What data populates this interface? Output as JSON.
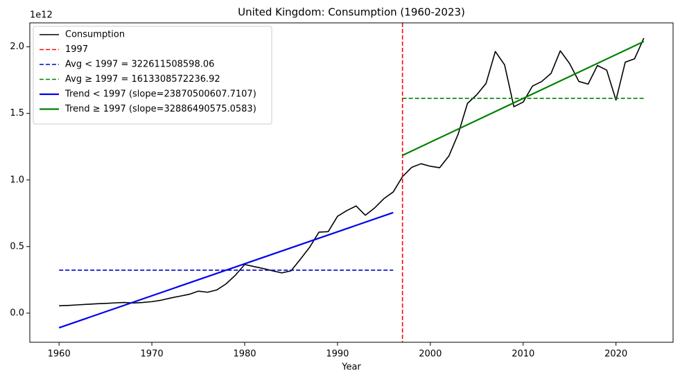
{
  "chart_data": {
    "type": "line",
    "title": "United Kingdom: Consumption (1960-2023)",
    "xlabel": "Year",
    "y_offset_label": "1e12",
    "xlim": [
      1956.85,
      2026.15
    ],
    "ylim": [
      -219000000000.0,
      2180000000000.0
    ],
    "xticks": [
      1960,
      1970,
      1980,
      1990,
      2000,
      2010,
      2020
    ],
    "yticks": [
      {
        "value": 0,
        "label": "0.0"
      },
      {
        "value": 500000000000.0,
        "label": "0.5"
      },
      {
        "value": 1000000000000.0,
        "label": "1.0"
      },
      {
        "value": 1500000000000.0,
        "label": "1.5"
      },
      {
        "value": 2000000000000.0,
        "label": "2.0"
      }
    ],
    "grid": false,
    "legend": "upper left",
    "series": [
      {
        "name": "Consumption",
        "color": "#000000",
        "dash": false,
        "width": 1.6,
        "x": [
          1960,
          1961,
          1962,
          1963,
          1964,
          1965,
          1966,
          1967,
          1968,
          1969,
          1970,
          1971,
          1972,
          1973,
          1974,
          1975,
          1976,
          1977,
          1978,
          1979,
          1980,
          1981,
          1982,
          1983,
          1984,
          1985,
          1986,
          1987,
          1988,
          1989,
          1990,
          1991,
          1992,
          1993,
          1994,
          1995,
          1996,
          1997,
          1998,
          1999,
          2000,
          2001,
          2002,
          2003,
          2004,
          2005,
          2006,
          2007,
          2008,
          2009,
          2010,
          2011,
          2012,
          2013,
          2014,
          2015,
          2016,
          2017,
          2018,
          2019,
          2020,
          2021,
          2022,
          2023
        ],
        "values": [
          55000000000.0,
          58000000000.0,
          62000000000.0,
          66000000000.0,
          70000000000.0,
          73000000000.0,
          77000000000.0,
          80000000000.0,
          76000000000.0,
          80000000000.0,
          86000000000.0,
          97000000000.0,
          113000000000.0,
          127000000000.0,
          141000000000.0,
          165000000000.0,
          157000000000.0,
          174000000000.0,
          220000000000.0,
          285000000000.0,
          365000000000.0,
          350000000000.0,
          335000000000.0,
          318000000000.0,
          302000000000.0,
          318000000000.0,
          405000000000.0,
          495000000000.0,
          608000000000.0,
          612000000000.0,
          727000000000.0,
          770000000000.0,
          805000000000.0,
          735000000000.0,
          790000000000.0,
          860000000000.0,
          910000000000.0,
          1025000000000.0,
          1095000000000.0,
          1122000000000.0,
          1103000000000.0,
          1092000000000.0,
          1180000000000.0,
          1345000000000.0,
          1575000000000.0,
          1640000000000.0,
          1725000000000.0,
          1965000000000.0,
          1865000000000.0,
          1550000000000.0,
          1585000000000.0,
          1705000000000.0,
          1740000000000.0,
          1800000000000.0,
          1970000000000.0,
          1875000000000.0,
          1740000000000.0,
          1720000000000.0,
          1860000000000.0,
          1825000000000.0,
          1600000000000.0,
          1885000000000.0,
          1910000000000.0,
          2065000000000.0
        ]
      },
      {
        "name": "1997",
        "color": "#ff0000",
        "dash": true,
        "width": 1.6,
        "vertical": true,
        "x": [
          1997
        ]
      },
      {
        "name": "Avg < 1997 = 322611508598.06",
        "color": "#0000cc",
        "dash": true,
        "width": 1.6,
        "x": [
          1960,
          1996
        ],
        "values": [
          322611508598.06,
          322611508598.06
        ]
      },
      {
        "name": "Avg ≥ 1997 = 1613308572236.92",
        "color": "#008000",
        "dash": true,
        "width": 1.6,
        "x": [
          1997,
          2023
        ],
        "values": [
          1613308572236.92,
          1613308572236.92
        ]
      },
      {
        "name": "Trend < 1997 (slope=23870500607.7107)",
        "color": "#0000ee",
        "dash": false,
        "width": 2.2,
        "x": [
          1960,
          1996
        ],
        "values": [
          -110000000000.0,
          755000000000.0
        ]
      },
      {
        "name": "Trend ≥ 1997 (slope=32886490575.0583)",
        "color": "#008000",
        "dash": false,
        "width": 2.2,
        "x": [
          1997,
          2023
        ],
        "values": [
          1185000000000.0,
          2040000000000.0
        ]
      }
    ]
  }
}
